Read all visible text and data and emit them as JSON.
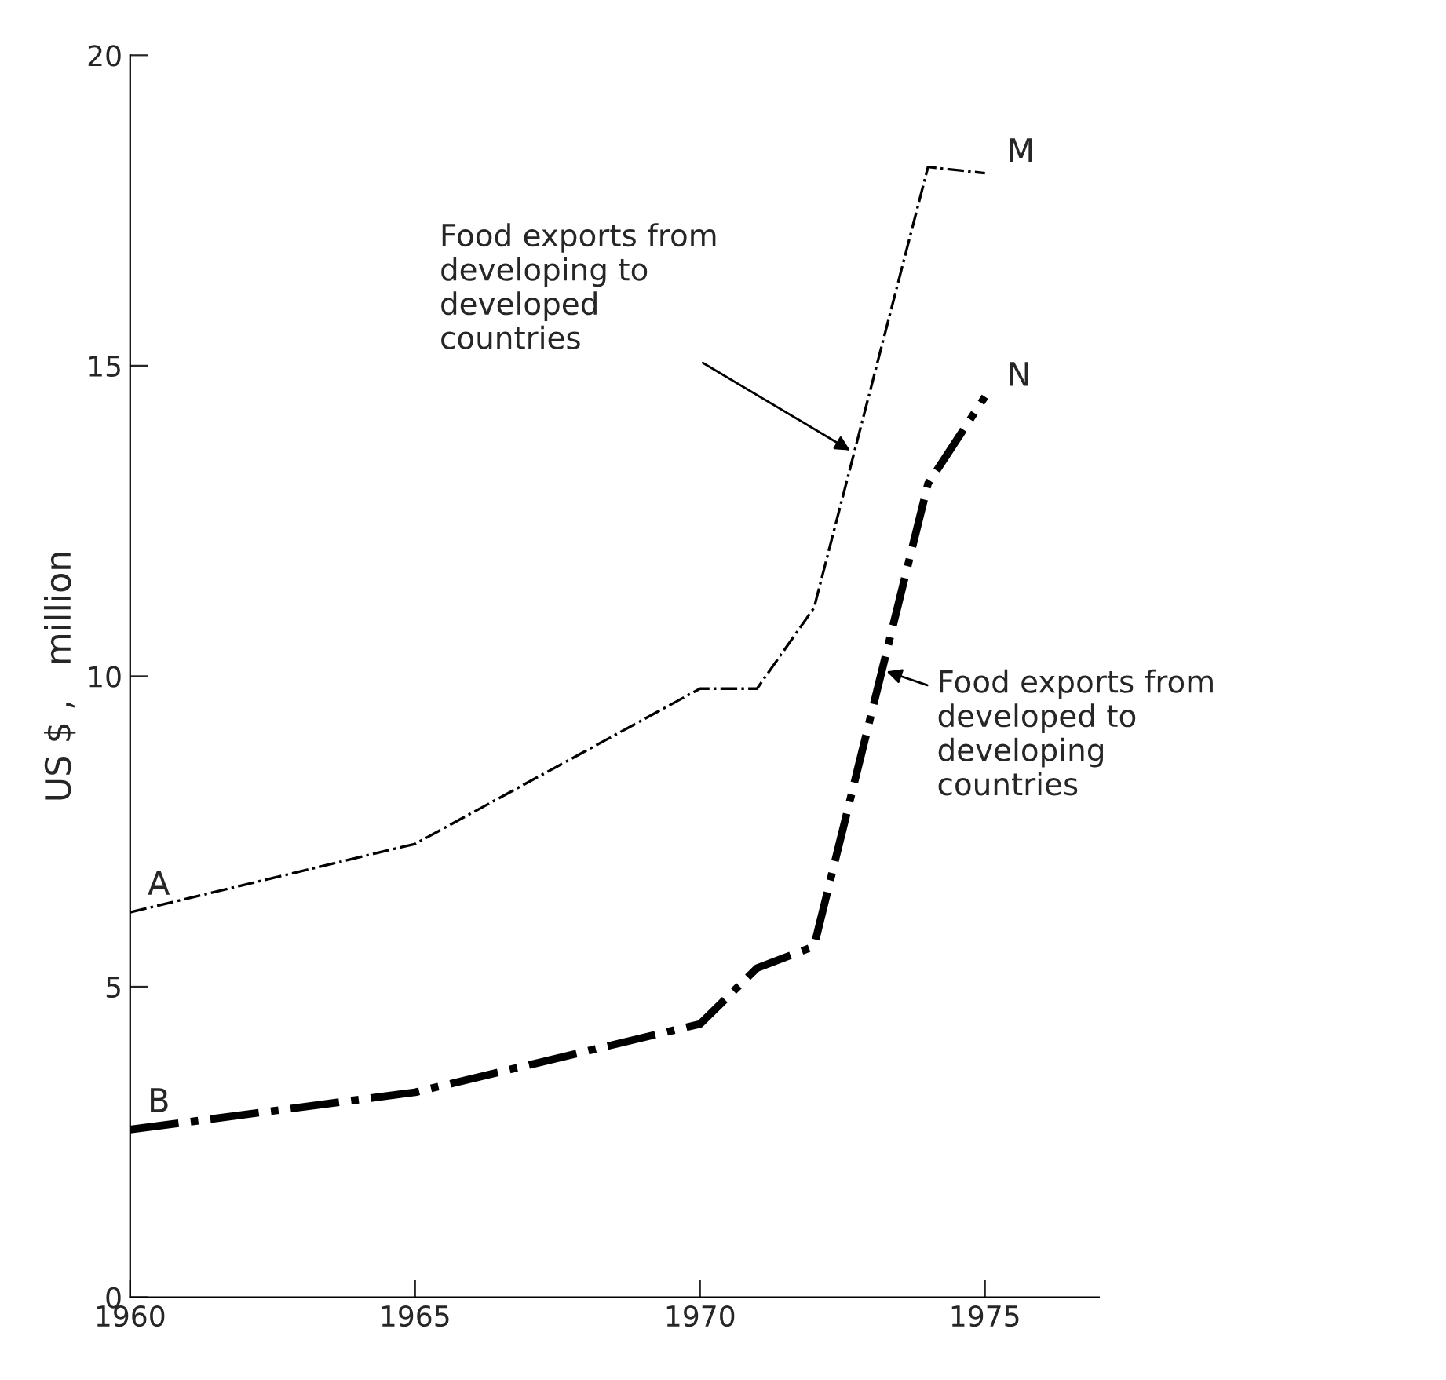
{
  "chart_data": {
    "type": "line",
    "ylabel": "US $ ,   million",
    "x": [
      1960,
      1965,
      1970,
      1971,
      1972,
      1974,
      1975
    ],
    "series": [
      {
        "color": "#000000",
        "line_style": "dashdot",
        "values": [
          6.2,
          7.3,
          9.8,
          9.8,
          11.1,
          18.2,
          18.1
        ]
      },
      {
        "color": "#000000",
        "line_style": "dashdot",
        "values": [
          2.7,
          3.3,
          4.4,
          5.3,
          5.65,
          13.1,
          14.5
        ]
      }
    ],
    "xlim": [
      1960,
      1977
    ],
    "ylim": [
      0,
      20
    ],
    "xticks": [
      1960,
      1965,
      1970,
      1975
    ],
    "yticks": [
      0,
      5,
      10,
      15,
      20
    ],
    "grid": false,
    "legend": false,
    "marker": "none",
    "annotations": [
      {
        "text": "A",
        "x": 1960,
        "y": 6.2
      },
      {
        "text": "B",
        "x": 1960,
        "y": 2.7
      },
      {
        "text": "M",
        "x": 1975,
        "y": 18.1
      },
      {
        "text": "N",
        "x": 1975,
        "y": 14.5
      },
      {
        "text": "Food exports from\ndeveloping to\ndeveloped\ncountries",
        "x": 1972.7,
        "y": 13.6
      },
      {
        "text": "Food exports from\ndeveloped to\ndeveloping\ncountries",
        "x": 1973.2,
        "y": 10.1
      }
    ]
  }
}
